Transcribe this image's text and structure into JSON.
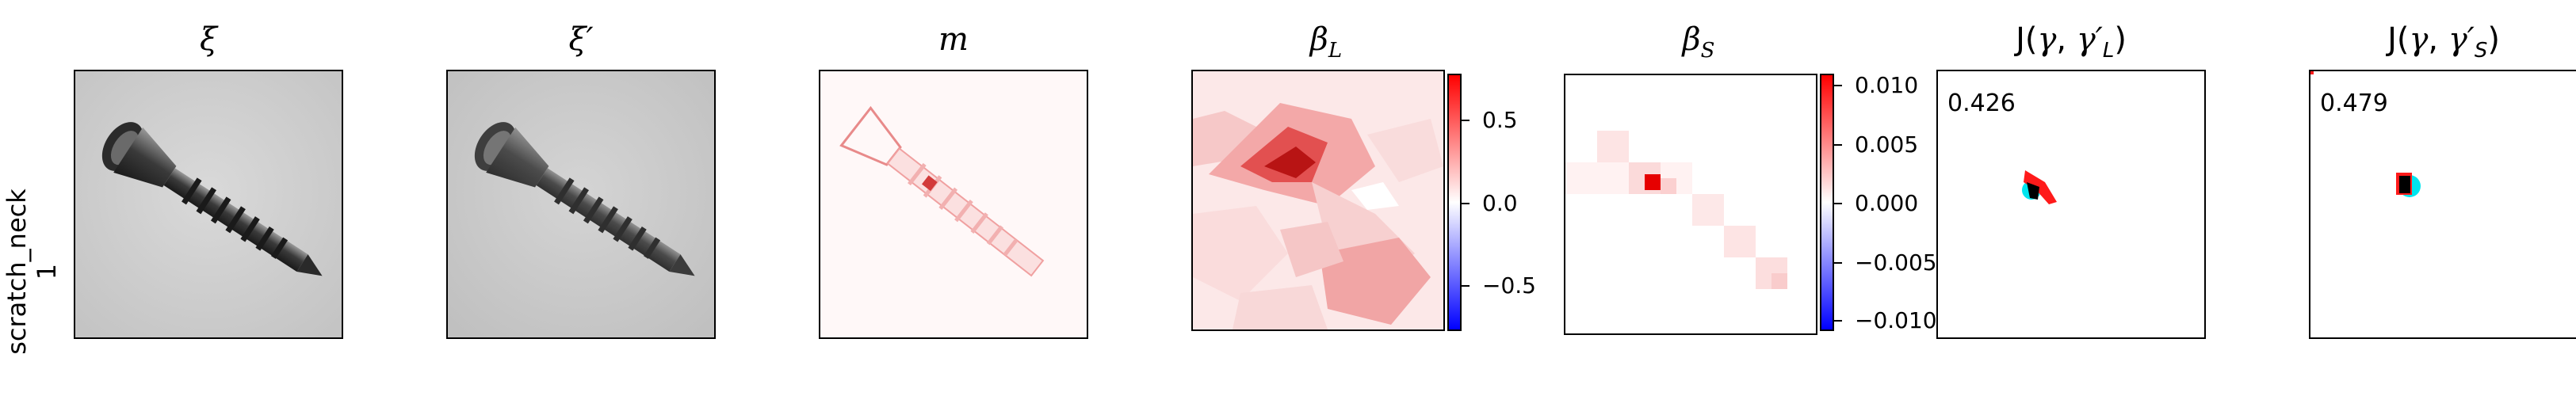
{
  "row": {
    "label_line1": "scratch_neck",
    "label_line2": "1"
  },
  "panels": [
    {
      "id": "xi",
      "title": "ξ"
    },
    {
      "id": "xi_prime",
      "title": "ξ′"
    },
    {
      "id": "m",
      "title": "m"
    },
    {
      "id": "beta_L",
      "title": "βL",
      "title_main": "β",
      "title_sub": "L",
      "colorbar": {
        "ticks": [
          "0.5",
          "0.0",
          "−0.5"
        ],
        "colors": [
          "#ff0000",
          "#ffffff",
          "#0000ff"
        ]
      }
    },
    {
      "id": "beta_S",
      "title": "βS",
      "title_main": "β",
      "title_sub": "S",
      "colorbar": {
        "ticks": [
          "0.010",
          "0.005",
          "0.000",
          "−0.005",
          "−0.010"
        ],
        "colors": [
          "#ff0000",
          "#ffffff",
          "#0000ff"
        ]
      }
    },
    {
      "id": "J_L",
      "title_prefix": "J(",
      "title_gamma": "γ",
      "title_mid": ", ",
      "title_gamma2": "γ′",
      "title_sub": "L",
      "title_suffix": ")",
      "score": "0.426"
    },
    {
      "id": "J_S",
      "title_prefix": "J(",
      "title_gamma": "γ",
      "title_mid": ", ",
      "title_gamma2": "γ′",
      "title_sub": "S",
      "title_suffix": ")",
      "score": "0.479"
    }
  ],
  "colors": {
    "frame": "#000000",
    "positive": "#ff0000",
    "negative": "#0000ff",
    "overlap": "#00e5ee"
  }
}
